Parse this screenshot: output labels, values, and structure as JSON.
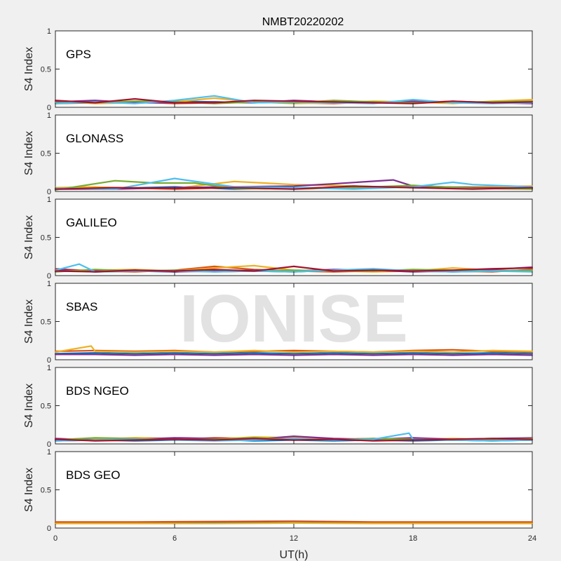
{
  "chart_data": {
    "type": "line",
    "title": "NMBT20220202",
    "xlabel": "UT(h)",
    "ylabel": "S4 Index",
    "xlim": [
      0,
      24
    ],
    "ylim": [
      0,
      1
    ],
    "x_ticks": [
      "0",
      "6",
      "12",
      "18",
      "24"
    ],
    "y_ticks": [
      "0",
      "0.5",
      "1"
    ],
    "watermark": "IONISE",
    "grid": false,
    "colors": [
      "#0072bd",
      "#d95319",
      "#edb120",
      "#7e2f8e",
      "#77ac30",
      "#4dbeee",
      "#a2142f"
    ],
    "panels": [
      {
        "label": "GPS",
        "series": [
          {
            "x": [
              0,
              2,
              4,
              6,
              8,
              10,
              12,
              14,
              16,
              18,
              20,
              22,
              24
            ],
            "y": [
              0.06,
              0.07,
              0.06,
              0.08,
              0.07,
              0.06,
              0.07,
              0.08,
              0.06,
              0.07,
              0.06,
              0.07,
              0.06
            ]
          },
          {
            "x": [
              0,
              2,
              4,
              6,
              8,
              10,
              12,
              14,
              16,
              18,
              20,
              22,
              24
            ],
            "y": [
              0.05,
              0.06,
              0.07,
              0.05,
              0.06,
              0.08,
              0.06,
              0.05,
              0.07,
              0.06,
              0.08,
              0.06,
              0.07
            ]
          },
          {
            "x": [
              0,
              2,
              4,
              6,
              8,
              10,
              12,
              14,
              16,
              18,
              20,
              22,
              24
            ],
            "y": [
              0.08,
              0.05,
              0.06,
              0.07,
              0.12,
              0.07,
              0.05,
              0.06,
              0.08,
              0.07,
              0.05,
              0.08,
              0.1
            ]
          },
          {
            "x": [
              0,
              2,
              4,
              6,
              8,
              10,
              12,
              14,
              16,
              18,
              20,
              22,
              24
            ],
            "y": [
              0.07,
              0.09,
              0.06,
              0.06,
              0.07,
              0.06,
              0.09,
              0.07,
              0.06,
              0.08,
              0.07,
              0.06,
              0.05
            ]
          },
          {
            "x": [
              0,
              2,
              4,
              6,
              8,
              10,
              12,
              14,
              16,
              18,
              20,
              22,
              24
            ],
            "y": [
              0.06,
              0.06,
              0.08,
              0.07,
              0.05,
              0.07,
              0.06,
              0.09,
              0.07,
              0.06,
              0.07,
              0.07,
              0.08
            ]
          },
          {
            "x": [
              0,
              2,
              4,
              6,
              8,
              10,
              12,
              14,
              16,
              18,
              20,
              22,
              24
            ],
            "y": [
              0.05,
              0.07,
              0.05,
              0.09,
              0.15,
              0.06,
              0.07,
              0.06,
              0.05,
              0.1,
              0.06,
              0.05,
              0.06
            ]
          },
          {
            "x": [
              0,
              2,
              4,
              6,
              8,
              10,
              12,
              14,
              16,
              18,
              20,
              22,
              24
            ],
            "y": [
              0.09,
              0.06,
              0.11,
              0.06,
              0.06,
              0.09,
              0.08,
              0.07,
              0.06,
              0.05,
              0.08,
              0.06,
              0.07
            ]
          }
        ]
      },
      {
        "label": "GLONASS",
        "series": [
          {
            "x": [
              0,
              3,
              6,
              9,
              12,
              15,
              18,
              21,
              24
            ],
            "y": [
              0.03,
              0.04,
              0.06,
              0.03,
              0.05,
              0.04,
              0.06,
              0.05,
              0.04
            ]
          },
          {
            "x": [
              0,
              3,
              6,
              9,
              12,
              15,
              18,
              21,
              24
            ],
            "y": [
              0.04,
              0.05,
              0.03,
              0.05,
              0.04,
              0.06,
              0.05,
              0.04,
              0.05
            ]
          },
          {
            "x": [
              0,
              2,
              3,
              6,
              9,
              12,
              15,
              18,
              21,
              24
            ],
            "y": [
              0.05,
              0.06,
              0.05,
              0.04,
              0.13,
              0.09,
              0.07,
              0.05,
              0.06,
              0.07
            ]
          },
          {
            "x": [
              0,
              3,
              6,
              9,
              12,
              14,
              17,
              18,
              21,
              24
            ],
            "y": [
              0.03,
              0.03,
              0.05,
              0.06,
              0.07,
              0.1,
              0.15,
              0.07,
              0.05,
              0.04
            ]
          },
          {
            "x": [
              0,
              3,
              5,
              7,
              9,
              12,
              15,
              18,
              21,
              24
            ],
            "y": [
              0.02,
              0.14,
              0.11,
              0.11,
              0.04,
              0.03,
              0.05,
              0.08,
              0.04,
              0.03
            ]
          },
          {
            "x": [
              0,
              3,
              6,
              9,
              12,
              15,
              18,
              20,
              21,
              24
            ],
            "y": [
              0.04,
              0.03,
              0.17,
              0.06,
              0.05,
              0.03,
              0.06,
              0.12,
              0.09,
              0.06
            ]
          },
          {
            "x": [
              0,
              3,
              6,
              9,
              12,
              15,
              18,
              21,
              24
            ],
            "y": [
              0.03,
              0.05,
              0.04,
              0.05,
              0.03,
              0.07,
              0.05,
              0.03,
              0.05
            ]
          }
        ]
      },
      {
        "label": "GALILEO",
        "series": [
          {
            "x": [
              0,
              2,
              4,
              6,
              8,
              10,
              12,
              14,
              16,
              18,
              20,
              22,
              24
            ],
            "y": [
              0.07,
              0.05,
              0.06,
              0.05,
              0.07,
              0.06,
              0.05,
              0.07,
              0.08,
              0.06,
              0.05,
              0.06,
              0.07
            ]
          },
          {
            "x": [
              0,
              2,
              4,
              6,
              8,
              10,
              12,
              14,
              16,
              18,
              20,
              22,
              24
            ],
            "y": [
              0.09,
              0.06,
              0.05,
              0.07,
              0.12,
              0.08,
              0.06,
              0.05,
              0.06,
              0.07,
              0.06,
              0.05,
              0.08
            ]
          },
          {
            "x": [
              0,
              2,
              4,
              6,
              8,
              10,
              12,
              14,
              16,
              18,
              20,
              22,
              24
            ],
            "y": [
              0.06,
              0.07,
              0.08,
              0.06,
              0.1,
              0.13,
              0.07,
              0.06,
              0.05,
              0.06,
              0.1,
              0.07,
              0.06
            ]
          },
          {
            "x": [
              0,
              2,
              4,
              6,
              8,
              10,
              12,
              14,
              16,
              18,
              20,
              22,
              24
            ],
            "y": [
              0.08,
              0.06,
              0.07,
              0.05,
              0.06,
              0.07,
              0.06,
              0.08,
              0.07,
              0.05,
              0.06,
              0.08,
              0.11
            ]
          },
          {
            "x": [
              0,
              2,
              4,
              6,
              8,
              10,
              12,
              14,
              16,
              18,
              20,
              22,
              24
            ],
            "y": [
              0.05,
              0.08,
              0.06,
              0.07,
              0.05,
              0.06,
              0.07,
              0.06,
              0.06,
              0.08,
              0.07,
              0.06,
              0.07
            ]
          },
          {
            "x": [
              0,
              1.2,
              2,
              4,
              6,
              8,
              10,
              12,
              14,
              16,
              18,
              20,
              22,
              24
            ],
            "y": [
              0.07,
              0.15,
              0.05,
              0.06,
              0.06,
              0.05,
              0.06,
              0.05,
              0.07,
              0.09,
              0.06,
              0.05,
              0.06,
              0.05
            ]
          },
          {
            "x": [
              0,
              2,
              4,
              6,
              8,
              10,
              12,
              14,
              16,
              18,
              20,
              22,
              24
            ],
            "y": [
              0.06,
              0.05,
              0.07,
              0.06,
              0.08,
              0.06,
              0.12,
              0.06,
              0.07,
              0.06,
              0.07,
              0.09,
              0.1
            ]
          }
        ]
      },
      {
        "label": "SBAS",
        "series": [
          {
            "x": [
              0,
              2,
              4,
              6,
              8,
              10,
              12,
              14,
              16,
              18,
              20,
              22,
              24
            ],
            "y": [
              0.08,
              0.09,
              0.08,
              0.09,
              0.08,
              0.09,
              0.08,
              0.09,
              0.08,
              0.09,
              0.08,
              0.09,
              0.08
            ]
          },
          {
            "x": [
              0,
              2,
              4,
              6,
              8,
              10,
              12,
              14,
              16,
              18,
              20,
              22,
              24
            ],
            "y": [
              0.11,
              0.12,
              0.11,
              0.12,
              0.1,
              0.11,
              0.12,
              0.11,
              0.1,
              0.12,
              0.13,
              0.11,
              0.1
            ]
          },
          {
            "x": [
              0,
              1.8,
              2,
              4,
              6,
              8,
              10,
              12,
              14,
              16,
              18,
              20,
              22,
              24
            ],
            "y": [
              0.1,
              0.18,
              0.11,
              0.1,
              0.11,
              0.1,
              0.12,
              0.1,
              0.11,
              0.1,
              0.11,
              0.1,
              0.12,
              0.11
            ]
          },
          {
            "x": [
              0,
              2,
              4,
              6,
              8,
              10,
              12,
              14,
              16,
              18,
              20,
              22,
              24
            ],
            "y": [
              0.07,
              0.07,
              0.06,
              0.07,
              0.06,
              0.07,
              0.06,
              0.07,
              0.06,
              0.07,
              0.06,
              0.07,
              0.06
            ]
          }
        ]
      },
      {
        "label": "BDS NGEO",
        "series": [
          {
            "x": [
              0,
              2,
              4,
              6,
              8,
              10,
              12,
              14,
              16,
              18,
              20,
              22,
              24
            ],
            "y": [
              0.04,
              0.05,
              0.04,
              0.05,
              0.06,
              0.04,
              0.05,
              0.04,
              0.05,
              0.04,
              0.05,
              0.04,
              0.05
            ]
          },
          {
            "x": [
              0,
              2,
              4,
              6,
              8,
              10,
              12,
              14,
              16,
              18,
              20,
              22,
              24
            ],
            "y": [
              0.06,
              0.07,
              0.05,
              0.06,
              0.08,
              0.07,
              0.05,
              0.06,
              0.07,
              0.05,
              0.06,
              0.05,
              0.06
            ]
          },
          {
            "x": [
              0,
              2,
              4,
              6,
              8,
              10,
              12,
              14,
              16,
              18,
              20,
              22,
              24
            ],
            "y": [
              0.05,
              0.06,
              0.08,
              0.07,
              0.06,
              0.09,
              0.08,
              0.06,
              0.05,
              0.06,
              0.07,
              0.06,
              0.05
            ]
          },
          {
            "x": [
              0,
              2,
              4,
              6,
              8,
              10,
              12,
              14,
              16,
              18,
              20,
              22,
              24
            ],
            "y": [
              0.07,
              0.05,
              0.06,
              0.08,
              0.07,
              0.06,
              0.1,
              0.07,
              0.06,
              0.08,
              0.06,
              0.07,
              0.08
            ]
          },
          {
            "x": [
              0,
              2,
              4,
              6,
              8,
              10,
              12,
              14,
              16,
              18,
              20,
              22,
              24
            ],
            "y": [
              0.05,
              0.08,
              0.07,
              0.05,
              0.06,
              0.08,
              0.06,
              0.05,
              0.07,
              0.06,
              0.05,
              0.06,
              0.07
            ]
          },
          {
            "x": [
              0,
              2,
              4,
              6,
              8,
              10,
              12,
              14,
              16,
              17.8,
              18,
              20,
              22,
              24
            ],
            "y": [
              0.04,
              0.05,
              0.06,
              0.05,
              0.04,
              0.05,
              0.07,
              0.05,
              0.06,
              0.14,
              0.06,
              0.05,
              0.04,
              0.05
            ]
          },
          {
            "x": [
              0,
              2,
              4,
              6,
              8,
              10,
              12,
              14,
              16,
              18,
              20,
              22,
              24
            ],
            "y": [
              0.06,
              0.04,
              0.05,
              0.06,
              0.05,
              0.07,
              0.05,
              0.06,
              0.04,
              0.05,
              0.06,
              0.07,
              0.06
            ]
          }
        ]
      },
      {
        "label": "BDS GEO",
        "series": [
          {
            "x": [
              0,
              4,
              8,
              12,
              16,
              20,
              24
            ],
            "y": [
              0.07,
              0.07,
              0.07,
              0.07,
              0.07,
              0.07,
              0.07
            ]
          },
          {
            "x": [
              0,
              4,
              8,
              12,
              16,
              20,
              24
            ],
            "y": [
              0.08,
              0.08,
              0.085,
              0.09,
              0.08,
              0.08,
              0.08
            ]
          },
          {
            "x": [
              0,
              4,
              8,
              12,
              16,
              20,
              24
            ],
            "y": [
              0.06,
              0.06,
              0.06,
              0.065,
              0.06,
              0.06,
              0.06
            ]
          }
        ]
      }
    ]
  }
}
